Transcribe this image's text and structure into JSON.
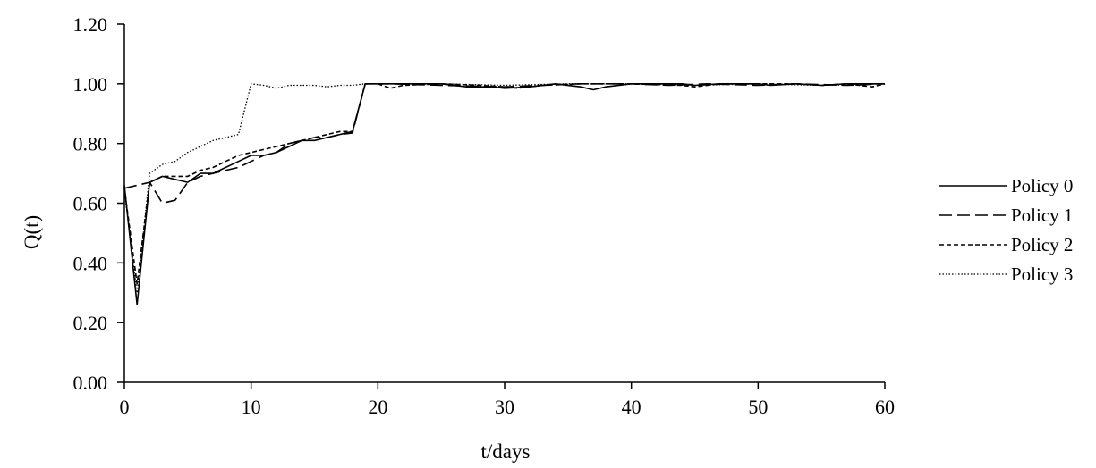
{
  "chart_data": {
    "type": "line",
    "title": "",
    "xlabel": "t/days",
    "ylabel": "Q(t)",
    "xlim": [
      0,
      60
    ],
    "ylim": [
      0,
      1.2
    ],
    "xticks": [
      "0",
      "10",
      "20",
      "30",
      "40",
      "50",
      "60"
    ],
    "yticks": [
      "0.00",
      "0.20",
      "0.40",
      "0.60",
      "0.80",
      "1.00",
      "1.20"
    ],
    "grid": false,
    "legend_position": "right",
    "series": [
      {
        "name": "Policy 0",
        "style": "solid",
        "points": [
          [
            0,
            0.66
          ],
          [
            1,
            0.26
          ],
          [
            2,
            0.67
          ],
          [
            3,
            0.69
          ],
          [
            4,
            0.68
          ],
          [
            5,
            0.67
          ],
          [
            6,
            0.7
          ],
          [
            7,
            0.7
          ],
          [
            8,
            0.72
          ],
          [
            9,
            0.74
          ],
          [
            10,
            0.76
          ],
          [
            11,
            0.76
          ],
          [
            12,
            0.77
          ],
          [
            13,
            0.79
          ],
          [
            14,
            0.81
          ],
          [
            15,
            0.81
          ],
          [
            16,
            0.82
          ],
          [
            17,
            0.83
          ],
          [
            18,
            0.84
          ],
          [
            19,
            1.0
          ],
          [
            20,
            1.0
          ],
          [
            22,
            1.0
          ],
          [
            25,
            1.0
          ],
          [
            27,
            0.99
          ],
          [
            29,
            0.99
          ],
          [
            30,
            0.985
          ],
          [
            32,
            0.99
          ],
          [
            34,
            1.0
          ],
          [
            36,
            0.99
          ],
          [
            37,
            0.98
          ],
          [
            38,
            0.99
          ],
          [
            40,
            1.0
          ],
          [
            44,
            1.0
          ],
          [
            45,
            0.995
          ],
          [
            47,
            1.0
          ],
          [
            50,
            1.0
          ],
          [
            51,
            0.995
          ],
          [
            53,
            1.0
          ],
          [
            55,
            0.995
          ],
          [
            57,
            1.0
          ],
          [
            60,
            1.0
          ]
        ]
      },
      {
        "name": "Policy 1",
        "style": "long-dash",
        "points": [
          [
            0,
            0.65
          ],
          [
            2,
            0.67
          ],
          [
            3,
            0.6
          ],
          [
            4,
            0.61
          ],
          [
            5,
            0.67
          ],
          [
            6,
            0.69
          ],
          [
            7,
            0.7
          ],
          [
            8,
            0.71
          ],
          [
            9,
            0.72
          ],
          [
            10,
            0.74
          ],
          [
            11,
            0.76
          ],
          [
            12,
            0.77
          ],
          [
            13,
            0.8
          ],
          [
            14,
            0.81
          ],
          [
            15,
            0.82
          ],
          [
            16,
            0.82
          ],
          [
            17,
            0.83
          ],
          [
            18,
            0.835
          ],
          [
            19,
            1.0
          ],
          [
            21,
            1.0
          ],
          [
            25,
            0.995
          ],
          [
            30,
            0.99
          ],
          [
            33,
            0.995
          ],
          [
            36,
            1.0
          ],
          [
            40,
            1.0
          ],
          [
            43,
            0.995
          ],
          [
            46,
            1.0
          ],
          [
            50,
            0.995
          ],
          [
            53,
            1.0
          ],
          [
            57,
            0.995
          ],
          [
            60,
            1.0
          ]
        ]
      },
      {
        "name": "Policy 2",
        "style": "short-dash",
        "points": [
          [
            0,
            0.65
          ],
          [
            1,
            0.33
          ],
          [
            2,
            0.67
          ],
          [
            3,
            0.69
          ],
          [
            4,
            0.69
          ],
          [
            5,
            0.69
          ],
          [
            6,
            0.71
          ],
          [
            7,
            0.72
          ],
          [
            8,
            0.74
          ],
          [
            9,
            0.76
          ],
          [
            10,
            0.77
          ],
          [
            11,
            0.78
          ],
          [
            12,
            0.79
          ],
          [
            13,
            0.8
          ],
          [
            14,
            0.81
          ],
          [
            15,
            0.82
          ],
          [
            16,
            0.83
          ],
          [
            17,
            0.84
          ],
          [
            18,
            0.84
          ],
          [
            19,
            1.0
          ],
          [
            20,
            1.0
          ],
          [
            21,
            0.985
          ],
          [
            22,
            0.995
          ],
          [
            25,
            1.0
          ],
          [
            28,
            0.995
          ],
          [
            30,
            0.99
          ],
          [
            31,
            0.985
          ],
          [
            33,
            0.995
          ],
          [
            36,
            1.0
          ],
          [
            40,
            1.0
          ],
          [
            44,
            0.995
          ],
          [
            45,
            0.99
          ],
          [
            47,
            1.0
          ],
          [
            50,
            1.0
          ],
          [
            53,
            1.0
          ],
          [
            55,
            0.995
          ],
          [
            57,
            1.0
          ],
          [
            58,
            0.995
          ],
          [
            59,
            0.99
          ],
          [
            60,
            1.0
          ]
        ]
      },
      {
        "name": "Policy 3",
        "style": "dotted",
        "points": [
          [
            0,
            0.64
          ],
          [
            1,
            0.3
          ],
          [
            2,
            0.7
          ],
          [
            3,
            0.73
          ],
          [
            4,
            0.74
          ],
          [
            5,
            0.77
          ],
          [
            6,
            0.79
          ],
          [
            7,
            0.81
          ],
          [
            8,
            0.82
          ],
          [
            9,
            0.83
          ],
          [
            10,
            1.0
          ],
          [
            11,
            0.995
          ],
          [
            12,
            0.985
          ],
          [
            13,
            0.995
          ],
          [
            14,
            0.995
          ],
          [
            15,
            0.995
          ],
          [
            16,
            0.99
          ],
          [
            17,
            0.995
          ],
          [
            18,
            0.995
          ],
          [
            19,
            1.0
          ],
          [
            20,
            1.0
          ],
          [
            25,
            1.0
          ],
          [
            30,
            0.995
          ],
          [
            35,
            1.0
          ],
          [
            40,
            1.0
          ],
          [
            45,
            0.995
          ],
          [
            50,
            1.0
          ],
          [
            55,
            0.995
          ],
          [
            60,
            1.0
          ]
        ]
      }
    ]
  }
}
